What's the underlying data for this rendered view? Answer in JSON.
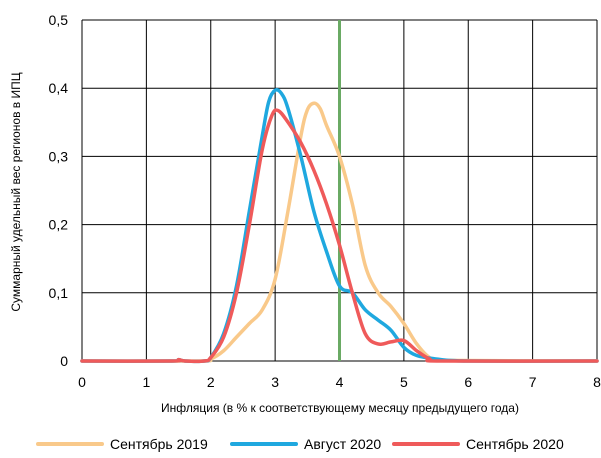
{
  "chart_data": {
    "type": "line",
    "xlabel": "Инфляция (в % к соответствующему месяцу предыдущего года)",
    "ylabel": "Суммарный удельный вес регионов в ИПЦ",
    "xlim": [
      0,
      8
    ],
    "ylim": [
      0,
      0.5
    ],
    "x_ticks": [
      "0",
      "1",
      "2",
      "3",
      "4",
      "5",
      "6",
      "7",
      "8"
    ],
    "y_ticks": [
      "0",
      "0,1",
      "0,2",
      "0,3",
      "0,4",
      "0,5"
    ],
    "grid": true,
    "legend_position": "bottom",
    "reference_line": {
      "x": 4,
      "color": "#6aaa64"
    },
    "series": [
      {
        "name": "Сентябрь 2019",
        "color": "#f9c98a",
        "points": [
          [
            0,
            0
          ],
          [
            1.8,
            0
          ],
          [
            2.0,
            0.003
          ],
          [
            2.2,
            0.015
          ],
          [
            2.4,
            0.035
          ],
          [
            2.6,
            0.055
          ],
          [
            2.8,
            0.075
          ],
          [
            3.0,
            0.12
          ],
          [
            3.2,
            0.22
          ],
          [
            3.4,
            0.33
          ],
          [
            3.5,
            0.368
          ],
          [
            3.6,
            0.378
          ],
          [
            3.7,
            0.37
          ],
          [
            3.8,
            0.345
          ],
          [
            4.0,
            0.3
          ],
          [
            4.2,
            0.23
          ],
          [
            4.4,
            0.14
          ],
          [
            4.6,
            0.1
          ],
          [
            4.8,
            0.08
          ],
          [
            5.0,
            0.055
          ],
          [
            5.2,
            0.025
          ],
          [
            5.4,
            0.005
          ],
          [
            5.6,
            0.001
          ],
          [
            8,
            0
          ]
        ]
      },
      {
        "name": "Август 2020",
        "color": "#1fa8df",
        "points": [
          [
            0,
            0
          ],
          [
            1.4,
            0
          ],
          [
            1.5,
            0.002
          ],
          [
            1.6,
            0
          ],
          [
            1.9,
            0
          ],
          [
            2.0,
            0.005
          ],
          [
            2.2,
            0.04
          ],
          [
            2.4,
            0.11
          ],
          [
            2.6,
            0.22
          ],
          [
            2.8,
            0.33
          ],
          [
            2.9,
            0.38
          ],
          [
            3.0,
            0.397
          ],
          [
            3.1,
            0.392
          ],
          [
            3.2,
            0.37
          ],
          [
            3.4,
            0.3
          ],
          [
            3.6,
            0.22
          ],
          [
            3.8,
            0.16
          ],
          [
            4.0,
            0.11
          ],
          [
            4.2,
            0.1
          ],
          [
            4.4,
            0.075
          ],
          [
            4.6,
            0.06
          ],
          [
            4.8,
            0.045
          ],
          [
            5.0,
            0.02
          ],
          [
            5.2,
            0.008
          ],
          [
            5.5,
            0.003
          ],
          [
            6.0,
            0
          ],
          [
            8,
            0
          ]
        ]
      },
      {
        "name": "Сентябрь 2020",
        "color": "#ef5a5a",
        "points": [
          [
            0,
            0
          ],
          [
            1.4,
            0
          ],
          [
            1.5,
            0.002
          ],
          [
            1.6,
            0
          ],
          [
            1.9,
            0
          ],
          [
            2.0,
            0.005
          ],
          [
            2.2,
            0.035
          ],
          [
            2.4,
            0.1
          ],
          [
            2.6,
            0.2
          ],
          [
            2.8,
            0.31
          ],
          [
            2.95,
            0.36
          ],
          [
            3.05,
            0.367
          ],
          [
            3.2,
            0.35
          ],
          [
            3.4,
            0.32
          ],
          [
            3.6,
            0.28
          ],
          [
            3.8,
            0.23
          ],
          [
            4.0,
            0.17
          ],
          [
            4.2,
            0.1
          ],
          [
            4.4,
            0.04
          ],
          [
            4.6,
            0.025
          ],
          [
            4.8,
            0.028
          ],
          [
            5.0,
            0.03
          ],
          [
            5.2,
            0.015
          ],
          [
            5.4,
            0.003
          ],
          [
            5.6,
            0
          ],
          [
            8,
            0
          ]
        ]
      }
    ]
  }
}
